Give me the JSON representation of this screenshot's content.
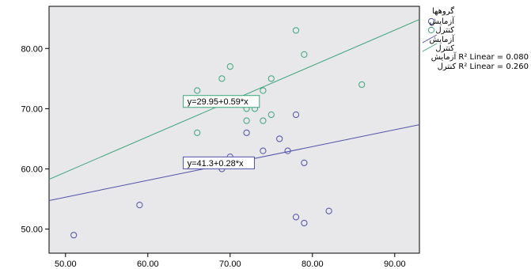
{
  "chart_data": {
    "type": "scatter",
    "title": "",
    "xlabel": "",
    "ylabel": "",
    "xlim": [
      48,
      93
    ],
    "ylim": [
      46,
      87
    ],
    "x_ticks": [
      50,
      60,
      70,
      80,
      90
    ],
    "y_ticks": [
      50,
      60,
      70,
      80
    ],
    "x_tick_labels": [
      "50.00",
      "60.00",
      "70.00",
      "80.00",
      "90.00"
    ],
    "y_tick_labels": [
      "50.00",
      "60.00",
      "70.00",
      "80.00"
    ],
    "grid": false,
    "background": "#e8e8ea",
    "legend": {
      "title": "گروهها",
      "position": "right",
      "entries": [
        "آزمایش",
        "کنترل",
        "آزمایش",
        "کنترل"
      ]
    },
    "r2_annotations": [
      "آزمایش R² Linear = 0.080",
      "کنترل R² Linear = 0.260"
    ],
    "series": [
      {
        "name": "آزمایش",
        "color": "#4f4fa8",
        "points": [
          [
            51,
            49
          ],
          [
            59,
            54
          ],
          [
            69,
            60
          ],
          [
            70,
            62
          ],
          [
            72,
            66
          ],
          [
            74,
            63
          ],
          [
            76,
            65
          ],
          [
            77,
            63
          ],
          [
            78,
            52
          ],
          [
            78,
            69
          ],
          [
            79,
            51
          ],
          [
            79,
            61
          ],
          [
            82,
            53
          ]
        ]
      },
      {
        "name": "کنترل",
        "color": "#3aa67a",
        "points": [
          [
            66,
            73
          ],
          [
            66,
            66
          ],
          [
            69,
            75
          ],
          [
            70,
            77
          ],
          [
            72,
            70
          ],
          [
            72,
            68
          ],
          [
            73,
            70
          ],
          [
            74,
            73
          ],
          [
            74,
            68
          ],
          [
            75,
            75
          ],
          [
            75,
            69
          ],
          [
            78,
            83
          ],
          [
            79,
            79
          ],
          [
            86,
            74
          ]
        ]
      }
    ],
    "fit_lines": [
      {
        "series": "آزمایش",
        "color": "#4f4fa8",
        "intercept": 41.3,
        "slope": 0.28,
        "label": "y=41.3+0.28*x",
        "label_at": [
          64.5,
          61
        ]
      },
      {
        "series": "کنترل",
        "color": "#3aa67a",
        "intercept": 29.95,
        "slope": 0.59,
        "label": "y=29.95+0.59*x",
        "label_at": [
          64.5,
          71.2
        ]
      }
    ]
  }
}
